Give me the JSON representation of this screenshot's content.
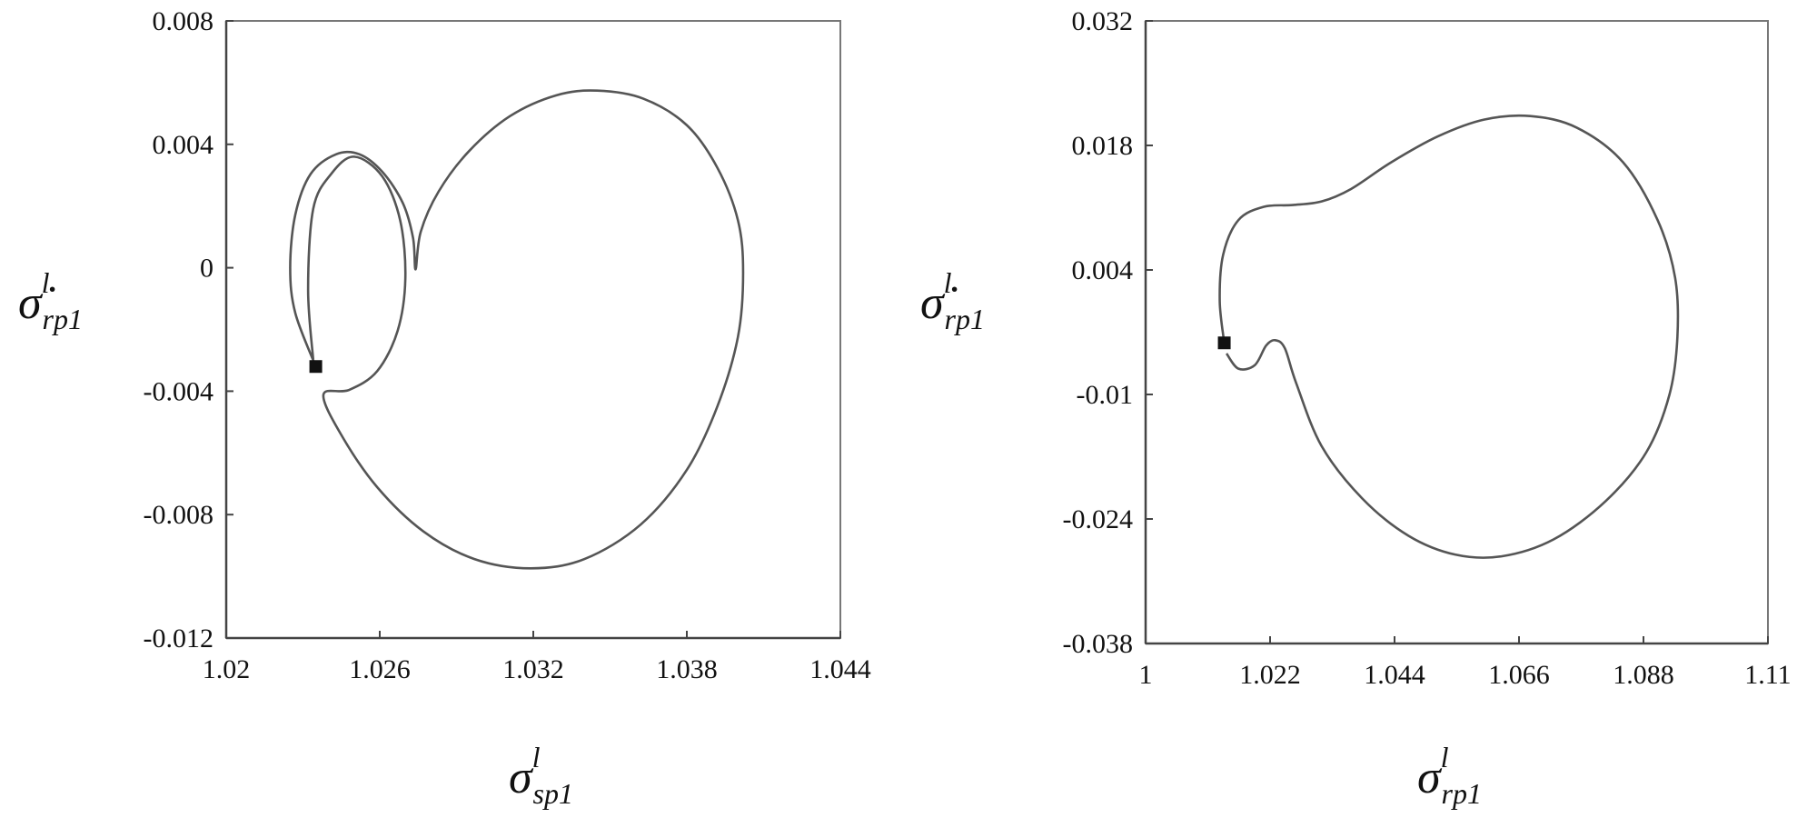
{
  "chart_data": [
    {
      "type": "line",
      "xlabel": {
        "symbol": "σ",
        "sup": "l",
        "sub": "sp1"
      },
      "ylabel": {
        "symbol": "σ̇",
        "sup": "l",
        "sub": "rp1"
      },
      "xlim": [
        1.02,
        1.044
      ],
      "xticks": [
        1.02,
        1.026,
        1.032,
        1.038,
        1.044
      ],
      "ylim": [
        -0.012,
        0.008
      ],
      "yticks": [
        0.008,
        0.004,
        0,
        -0.004,
        -0.008,
        -0.012
      ],
      "x": [
        1.0235,
        1.0227,
        1.0225,
        1.0227,
        1.0233,
        1.0243,
        1.0252,
        1.0261,
        1.0269,
        1.0273,
        1.0274,
        1.0276,
        1.0283,
        1.0295,
        1.0311,
        1.0329,
        1.0345,
        1.0363,
        1.038,
        1.0392,
        1.04,
        1.0402,
        1.04,
        1.0392,
        1.038,
        1.0362,
        1.034,
        1.0319,
        1.0297,
        1.0277,
        1.0259,
        1.0245,
        1.0238,
        1.0248,
        1.0259,
        1.0267,
        1.027,
        1.0268,
        1.0261,
        1.025,
        1.0241,
        1.0234,
        1.0232,
        1.0234
      ],
      "series": [
        {
          "color": "#555555",
          "values": [
            -0.0032,
            -0.00147,
            0,
            0.00172,
            0.00304,
            0.00368,
            0.00368,
            0.00311,
            0.0021,
            0.00097,
            -5e-05,
            0.00116,
            0.00247,
            0.00379,
            0.00492,
            0.00559,
            0.00574,
            0.00548,
            0.00462,
            0.00323,
            0.00153,
            -0.00016,
            -0.00223,
            -0.00448,
            -0.00655,
            -0.00832,
            -0.00944,
            -0.00974,
            -0.00944,
            -0.00854,
            -0.00711,
            -0.00542,
            -0.00411,
            -0.00396,
            -0.00335,
            -0.00204,
            -0.00035,
            0.00153,
            0.00296,
            0.0036,
            0.00304,
            0.00191,
            -0.00072,
            -0.00298
          ]
        }
      ],
      "marker_color": "#111111"
    },
    {
      "type": "line",
      "xlabel": {
        "symbol": "σ",
        "sup": "l",
        "sub": "rp1"
      },
      "ylabel": {
        "symbol": "σ̇",
        "sup": "l",
        "sub": "rp1"
      },
      "xlim": [
        1,
        1.11
      ],
      "xticks": [
        1,
        1.022,
        1.044,
        1.066,
        1.088,
        1.11
      ],
      "ylim": [
        -0.038,
        0.032
      ],
      "yticks": [
        0.032,
        0.018,
        0.004,
        -0.01,
        -0.024,
        -0.038
      ],
      "x": [
        1.0139,
        1.0131,
        1.0137,
        1.0164,
        1.0209,
        1.026,
        1.0311,
        1.0363,
        1.0434,
        1.0516,
        1.0598,
        1.068,
        1.0762,
        1.0844,
        1.0905,
        1.0936,
        1.094,
        1.0926,
        1.0885,
        1.0813,
        1.0721,
        1.0629,
        1.0547,
        1.0465,
        1.0383,
        1.0311,
        1.0266,
        1.0246,
        1.0229,
        1.0213,
        1.0193,
        1.0164,
        1.0143
      ],
      "series": [
        {
          "color": "#555555",
          "values": [
            -0.0042,
            0.0005,
            0.0057,
            0.0096,
            0.0111,
            0.0113,
            0.0117,
            0.0131,
            0.0161,
            0.019,
            0.0209,
            0.0213,
            0.02,
            0.0161,
            0.0096,
            0.0031,
            -0.0035,
            -0.01,
            -0.0165,
            -0.022,
            -0.0263,
            -0.0282,
            -0.028,
            -0.0259,
            -0.0217,
            -0.0158,
            -0.0087,
            -0.0048,
            -0.0039,
            -0.0045,
            -0.0067,
            -0.0071,
            -0.0054
          ]
        }
      ],
      "marker_color": "#111111"
    }
  ]
}
